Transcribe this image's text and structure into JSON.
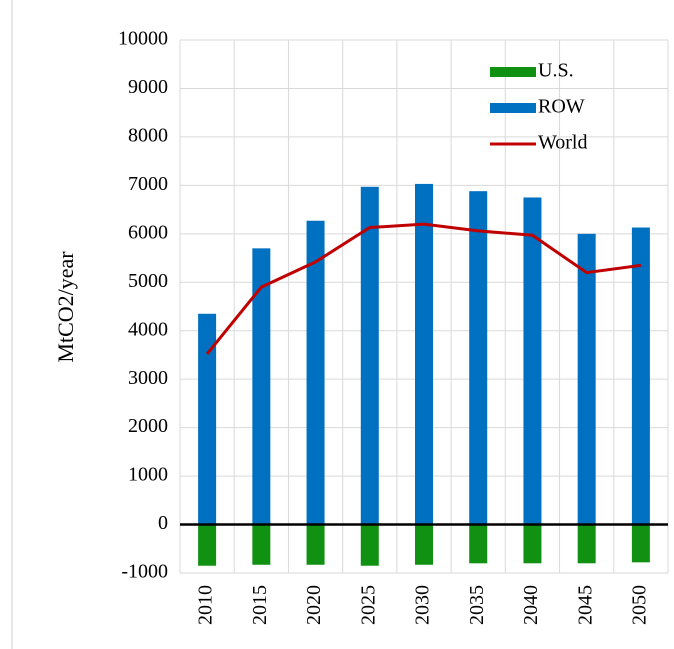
{
  "chart_data": {
    "type": "bar",
    "y_label": "MtCO2/year",
    "categories": [
      "2010",
      "2015",
      "2020",
      "2025",
      "2030",
      "2035",
      "2040",
      "2045",
      "2050"
    ],
    "series": [
      {
        "name": "U.S.",
        "type": "bar",
        "color": "#119111",
        "values": [
          -850,
          -830,
          -830,
          -850,
          -830,
          -800,
          -800,
          -800,
          -780
        ]
      },
      {
        "name": "ROW",
        "type": "bar",
        "color": "#0070c0",
        "values": [
          4350,
          5700,
          6270,
          6970,
          7030,
          6880,
          6750,
          6000,
          6130
        ]
      },
      {
        "name": "World",
        "type": "line",
        "color": "#c00000",
        "values": [
          3520,
          4900,
          5420,
          6130,
          6200,
          6060,
          5970,
          5200,
          5350
        ]
      }
    ],
    "ylim": [
      -1000,
      10000
    ],
    "yticks": [
      -1000,
      0,
      1000,
      2000,
      3000,
      4000,
      5000,
      6000,
      7000,
      8000,
      9000,
      10000
    ],
    "grid": true,
    "legend": "upper right"
  }
}
